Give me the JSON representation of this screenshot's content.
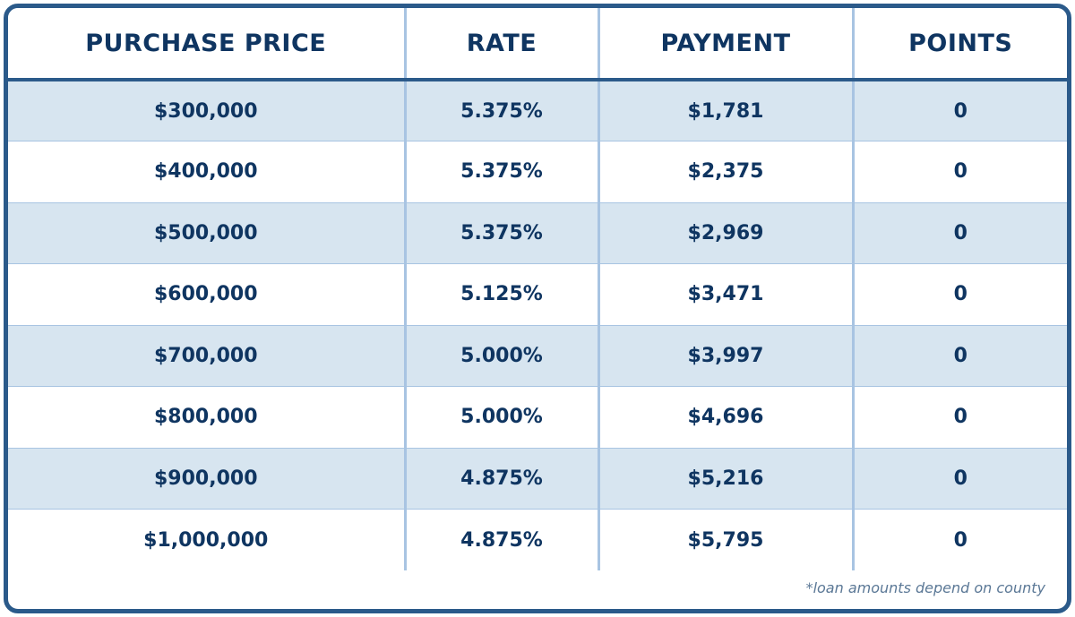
{
  "chart_data": {
    "type": "table",
    "columns": [
      "PURCHASE PRICE",
      "RATE",
      "PAYMENT",
      "POINTS"
    ],
    "rows": [
      [
        "$300,000",
        "5.375%",
        "$1,781",
        "0"
      ],
      [
        "$400,000",
        "5.375%",
        "$2,375",
        "0"
      ],
      [
        "$500,000",
        "5.375%",
        "$2,969",
        "0"
      ],
      [
        "$600,000",
        "5.125%",
        "$3,471",
        "0"
      ],
      [
        "$700,000",
        "5.000%",
        "$3,997",
        "0"
      ],
      [
        "$800,000",
        "5.000%",
        "$4,696",
        "0"
      ],
      [
        "$900,000",
        "4.875%",
        "$5,216",
        "0"
      ],
      [
        "$1,000,000",
        "4.875%",
        "$5,795",
        "0"
      ]
    ],
    "footnote": "*loan amounts depend on county"
  },
  "colors": {
    "border": "#2b5a8a",
    "text": "#0f3561",
    "row_shaded": "#d7e5f0",
    "divider": "#a8c4e2",
    "footnote": "#5b7896"
  }
}
